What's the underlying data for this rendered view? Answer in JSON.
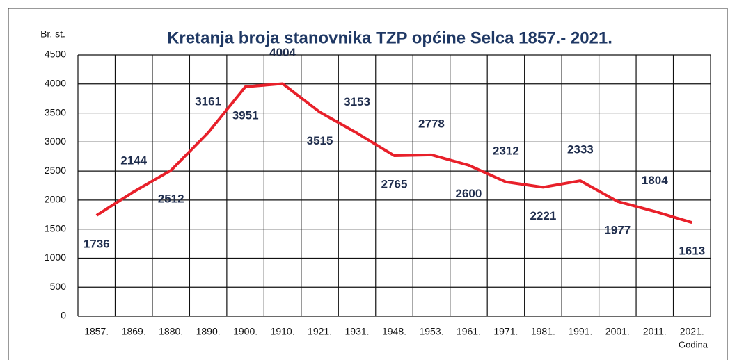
{
  "chart_data": {
    "type": "line",
    "title": "Kretanja broja stanovnika TZP općine Selca 1857.- 2021.",
    "y_label": "Br. st.",
    "x_label": "Godina",
    "categories": [
      "1857.",
      "1869.",
      "1880.",
      "1890.",
      "1900.",
      "1910.",
      "1921.",
      "1931.",
      "1948.",
      "1953.",
      "1961.",
      "1971.",
      "1981.",
      "1991.",
      "2001.",
      "2011.",
      "2021."
    ],
    "series": [
      {
        "name": "Br. st.",
        "color": "#e8202a",
        "values": [
          1736,
          2144,
          2512,
          3161,
          3951,
          4004,
          3515,
          3153,
          2765,
          2778,
          2600,
          2312,
          2221,
          2333,
          1977,
          1804,
          1613
        ]
      }
    ],
    "ylim": [
      0,
      4500
    ],
    "yticks": [
      0,
      500,
      1000,
      1500,
      2000,
      2500,
      3000,
      3500,
      4000,
      4500
    ],
    "grid": true
  }
}
